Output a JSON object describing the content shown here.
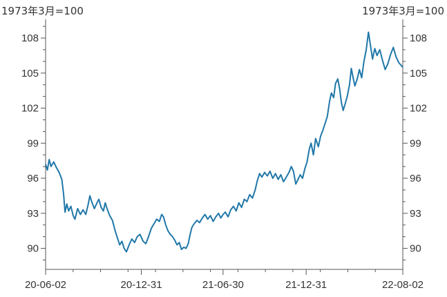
{
  "colors": {
    "line": "#1f77a8",
    "axis": "#555555",
    "text": "#333333"
  },
  "chart_data": {
    "type": "line",
    "title": "",
    "y_unit_left": "1973年3月=100",
    "y_unit_right": "1973年3月=100",
    "xlabel": "",
    "ylabel": "",
    "ylim": [
      88.2,
      109.6
    ],
    "y_ticks": [
      90,
      93,
      96,
      99,
      102,
      105,
      108
    ],
    "y_tick_labels": [
      "90",
      "93",
      "96",
      "99",
      "102",
      "105",
      "108"
    ],
    "x_tick_labels": [
      "20-06-02",
      "20-12-31",
      "21-06-30",
      "21-12-31",
      "22-08-02"
    ],
    "x_tick_dates": [
      "2020-06-02",
      "2020-12-31",
      "2021-06-30",
      "2021-12-31",
      "2022-08-02"
    ],
    "grid": false,
    "legend": "none",
    "series": [
      {
        "name": "",
        "points": [
          [
            "2020-06-02",
            97.2
          ],
          [
            "2020-06-06",
            96.7
          ],
          [
            "2020-06-10",
            97.6
          ],
          [
            "2020-06-14",
            97.0
          ],
          [
            "2020-06-20",
            97.4
          ],
          [
            "2020-06-26",
            96.9
          ],
          [
            "2020-07-02",
            96.5
          ],
          [
            "2020-07-08",
            95.9
          ],
          [
            "2020-07-12",
            94.6
          ],
          [
            "2020-07-15",
            93.1
          ],
          [
            "2020-07-19",
            93.8
          ],
          [
            "2020-07-23",
            93.2
          ],
          [
            "2020-07-28",
            93.6
          ],
          [
            "2020-08-02",
            92.8
          ],
          [
            "2020-08-06",
            92.5
          ],
          [
            "2020-08-12",
            93.4
          ],
          [
            "2020-08-18",
            92.9
          ],
          [
            "2020-08-24",
            93.3
          ],
          [
            "2020-08-30",
            92.9
          ],
          [
            "2020-09-04",
            93.7
          ],
          [
            "2020-09-08",
            94.5
          ],
          [
            "2020-09-12",
            94.0
          ],
          [
            "2020-09-18",
            93.4
          ],
          [
            "2020-09-24",
            93.9
          ],
          [
            "2020-09-28",
            94.2
          ],
          [
            "2020-10-03",
            93.5
          ],
          [
            "2020-10-08",
            93.2
          ],
          [
            "2020-10-12",
            93.9
          ],
          [
            "2020-10-16",
            93.4
          ],
          [
            "2020-10-22",
            92.8
          ],
          [
            "2020-10-28",
            92.4
          ],
          [
            "2020-11-03",
            91.5
          ],
          [
            "2020-11-08",
            90.9
          ],
          [
            "2020-11-13",
            90.3
          ],
          [
            "2020-11-18",
            90.6
          ],
          [
            "2020-11-23",
            90.0
          ],
          [
            "2020-11-28",
            89.7
          ],
          [
            "2020-12-04",
            90.3
          ],
          [
            "2020-12-10",
            90.8
          ],
          [
            "2020-12-16",
            90.5
          ],
          [
            "2020-12-22",
            91.0
          ],
          [
            "2020-12-28",
            91.2
          ],
          [
            "2021-01-04",
            90.6
          ],
          [
            "2021-01-10",
            90.4
          ],
          [
            "2021-01-16",
            91.0
          ],
          [
            "2021-01-22",
            91.7
          ],
          [
            "2021-01-28",
            92.1
          ],
          [
            "2021-02-03",
            92.5
          ],
          [
            "2021-02-09",
            92.3
          ],
          [
            "2021-02-14",
            92.9
          ],
          [
            "2021-02-18",
            92.7
          ],
          [
            "2021-02-23",
            92.0
          ],
          [
            "2021-02-28",
            91.5
          ],
          [
            "2021-03-05",
            91.2
          ],
          [
            "2021-03-10",
            91.0
          ],
          [
            "2021-03-15",
            90.7
          ],
          [
            "2021-03-20",
            90.3
          ],
          [
            "2021-03-25",
            90.5
          ],
          [
            "2021-03-30",
            89.9
          ],
          [
            "2021-04-04",
            90.1
          ],
          [
            "2021-04-09",
            90.0
          ],
          [
            "2021-04-14",
            90.4
          ],
          [
            "2021-04-18",
            91.2
          ],
          [
            "2021-04-22",
            91.8
          ],
          [
            "2021-04-27",
            92.1
          ],
          [
            "2021-05-03",
            92.4
          ],
          [
            "2021-05-09",
            92.2
          ],
          [
            "2021-05-15",
            92.6
          ],
          [
            "2021-05-21",
            92.9
          ],
          [
            "2021-05-27",
            92.5
          ],
          [
            "2021-06-02",
            92.8
          ],
          [
            "2021-06-08",
            92.3
          ],
          [
            "2021-06-14",
            92.7
          ],
          [
            "2021-06-20",
            93.0
          ],
          [
            "2021-06-25",
            92.6
          ],
          [
            "2021-06-30",
            92.9
          ],
          [
            "2021-07-05",
            93.1
          ],
          [
            "2021-07-11",
            92.7
          ],
          [
            "2021-07-17",
            93.3
          ],
          [
            "2021-07-23",
            93.6
          ],
          [
            "2021-07-29",
            93.2
          ],
          [
            "2021-08-04",
            93.9
          ],
          [
            "2021-08-10",
            93.5
          ],
          [
            "2021-08-16",
            94.2
          ],
          [
            "2021-08-22",
            94.0
          ],
          [
            "2021-08-28",
            94.6
          ],
          [
            "2021-09-03",
            94.3
          ],
          [
            "2021-09-09",
            95.0
          ],
          [
            "2021-09-14",
            95.8
          ],
          [
            "2021-09-19",
            96.4
          ],
          [
            "2021-09-24",
            96.1
          ],
          [
            "2021-09-30",
            96.5
          ],
          [
            "2021-10-06",
            96.2
          ],
          [
            "2021-10-12",
            96.6
          ],
          [
            "2021-10-18",
            96.0
          ],
          [
            "2021-10-24",
            96.4
          ],
          [
            "2021-10-30",
            95.9
          ],
          [
            "2021-11-05",
            96.3
          ],
          [
            "2021-11-11",
            95.7
          ],
          [
            "2021-11-17",
            96.1
          ],
          [
            "2021-11-23",
            96.5
          ],
          [
            "2021-11-28",
            97.0
          ],
          [
            "2021-12-03",
            96.6
          ],
          [
            "2021-12-08",
            95.5
          ],
          [
            "2021-12-13",
            95.9
          ],
          [
            "2021-12-18",
            96.3
          ],
          [
            "2021-12-23",
            96.0
          ],
          [
            "2021-12-28",
            96.8
          ],
          [
            "2022-01-02",
            97.4
          ],
          [
            "2022-01-07",
            98.5
          ],
          [
            "2022-01-11",
            99.0
          ],
          [
            "2022-01-16",
            98.0
          ],
          [
            "2022-01-21",
            99.4
          ],
          [
            "2022-01-27",
            98.7
          ],
          [
            "2022-02-01",
            99.6
          ],
          [
            "2022-02-06",
            100.1
          ],
          [
            "2022-02-11",
            100.7
          ],
          [
            "2022-02-16",
            101.3
          ],
          [
            "2022-02-21",
            102.6
          ],
          [
            "2022-02-25",
            103.3
          ],
          [
            "2022-03-02",
            102.9
          ],
          [
            "2022-03-06",
            104.1
          ],
          [
            "2022-03-11",
            104.5
          ],
          [
            "2022-03-15",
            103.7
          ],
          [
            "2022-03-19",
            102.5
          ],
          [
            "2022-03-23",
            101.8
          ],
          [
            "2022-03-27",
            102.3
          ],
          [
            "2022-04-01",
            103.0
          ],
          [
            "2022-04-06",
            104.0
          ],
          [
            "2022-04-10",
            105.4
          ],
          [
            "2022-04-14",
            104.6
          ],
          [
            "2022-04-18",
            103.9
          ],
          [
            "2022-04-23",
            104.5
          ],
          [
            "2022-04-28",
            105.3
          ],
          [
            "2022-05-03",
            104.6
          ],
          [
            "2022-05-08",
            106.0
          ],
          [
            "2022-05-13",
            107.0
          ],
          [
            "2022-05-18",
            108.5
          ],
          [
            "2022-05-22",
            107.5
          ],
          [
            "2022-05-27",
            106.2
          ],
          [
            "2022-06-01",
            107.1
          ],
          [
            "2022-06-06",
            106.5
          ],
          [
            "2022-06-12",
            107.0
          ],
          [
            "2022-06-18",
            106.1
          ],
          [
            "2022-06-24",
            105.3
          ],
          [
            "2022-06-30",
            105.8
          ],
          [
            "2022-07-06",
            106.6
          ],
          [
            "2022-07-12",
            107.2
          ],
          [
            "2022-07-18",
            106.4
          ],
          [
            "2022-07-24",
            105.9
          ],
          [
            "2022-08-02",
            105.5
          ]
        ]
      }
    ]
  }
}
